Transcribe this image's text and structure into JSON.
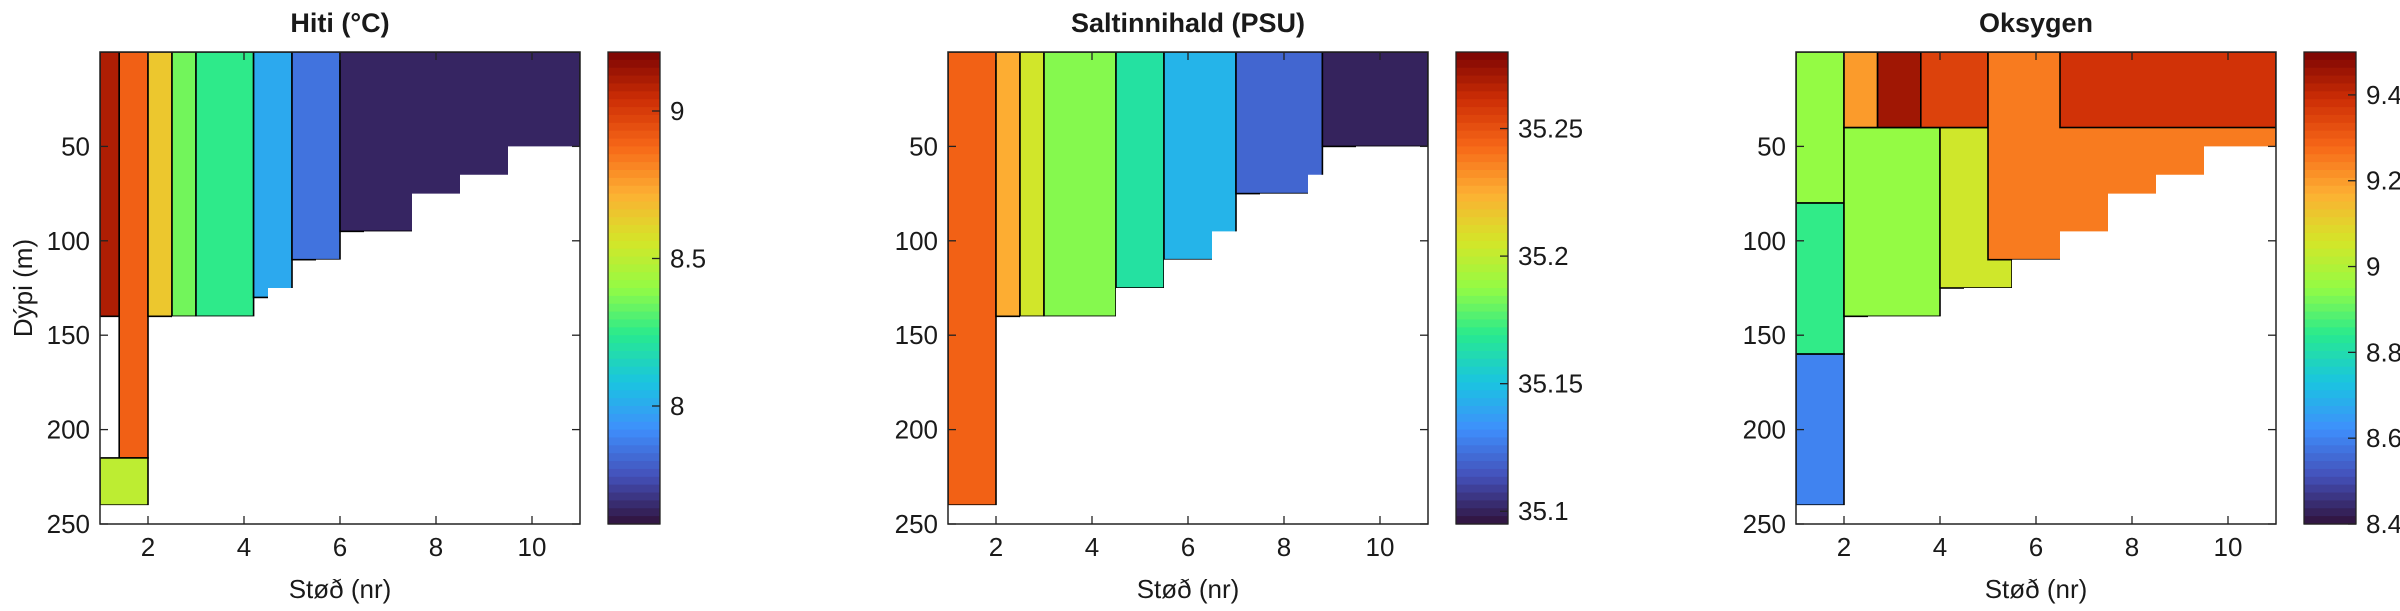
{
  "chart_data": [
    {
      "type": "heatmap",
      "title": "Hiti (°C)",
      "xlabel": "Støð (nr)",
      "ylabel": "Dýpi (m)",
      "xlim": [
        1,
        11
      ],
      "ylim": [
        250,
        0
      ],
      "y_reversed": true,
      "xticks": [
        2,
        4,
        6,
        8,
        10
      ],
      "yticks": [
        50,
        100,
        150,
        200,
        250
      ],
      "colorbar": {
        "range": [
          7.6,
          9.2
        ],
        "ticks": [
          "8",
          "8.5",
          "9"
        ]
      },
      "colormap": "turbo",
      "stations": [
        1,
        2,
        3,
        4,
        5,
        6,
        7,
        8,
        9,
        10,
        11
      ],
      "max_depth": [
        240,
        240,
        140,
        140,
        125,
        110,
        95,
        75,
        65,
        50,
        50
      ],
      "zones": [
        {
          "x": [
            1,
            1.4
          ],
          "depth": [
            0,
            140
          ],
          "value": 9.1
        },
        {
          "x": [
            1.4,
            2
          ],
          "depth": [
            0,
            215
          ],
          "value": 8.9
        },
        {
          "x": [
            1,
            2
          ],
          "depth": [
            215,
            240
          ],
          "value": 8.5
        },
        {
          "x": [
            2,
            2.5
          ],
          "depth": [
            0,
            140
          ],
          "value": 8.65
        },
        {
          "x": [
            2.5,
            3
          ],
          "depth": [
            0,
            140
          ],
          "value": 8.35
        },
        {
          "x": [
            3,
            4.2
          ],
          "depth": [
            0,
            140
          ],
          "value": 8.25
        },
        {
          "x": [
            4.2,
            5
          ],
          "depth": [
            0,
            130
          ],
          "value": 8.0
        },
        {
          "x": [
            5,
            6
          ],
          "depth": [
            0,
            110
          ],
          "value": 7.85
        },
        {
          "x": [
            6,
            11
          ],
          "depth": [
            0,
            95
          ],
          "value": 7.65
        }
      ]
    },
    {
      "type": "heatmap",
      "title": "Saltinnihald (PSU)",
      "xlabel": "Støð (nr)",
      "ylabel": "",
      "xlim": [
        1,
        11
      ],
      "ylim": [
        250,
        0
      ],
      "y_reversed": true,
      "xticks": [
        2,
        4,
        6,
        8,
        10
      ],
      "yticks": [
        50,
        100,
        150,
        200,
        250
      ],
      "colorbar": {
        "range": [
          35.095,
          35.28
        ],
        "ticks": [
          "35.1",
          "35.15",
          "35.2",
          "35.25"
        ]
      },
      "colormap": "turbo",
      "stations": [
        1,
        2,
        3,
        4,
        5,
        6,
        7,
        8,
        9,
        10,
        11
      ],
      "max_depth": [
        240,
        240,
        140,
        140,
        125,
        110,
        95,
        75,
        65,
        50,
        50
      ],
      "zones": [
        {
          "x": [
            1,
            2
          ],
          "depth": [
            0,
            240
          ],
          "value": 35.245
        },
        {
          "x": [
            2,
            2.5
          ],
          "depth": [
            0,
            140
          ],
          "value": 35.225
        },
        {
          "x": [
            2.5,
            3
          ],
          "depth": [
            0,
            140
          ],
          "value": 35.205
        },
        {
          "x": [
            3,
            4.5
          ],
          "depth": [
            0,
            140
          ],
          "value": 35.185
        },
        {
          "x": [
            4.5,
            5.5
          ],
          "depth": [
            0,
            125
          ],
          "value": 35.165
        },
        {
          "x": [
            5.5,
            7
          ],
          "depth": [
            0,
            110
          ],
          "value": 35.145
        },
        {
          "x": [
            7,
            8.8
          ],
          "depth": [
            0,
            75
          ],
          "value": 35.12
        },
        {
          "x": [
            8.8,
            11
          ],
          "depth": [
            0,
            50
          ],
          "value": 35.1
        }
      ]
    },
    {
      "type": "heatmap",
      "title": "Oksygen",
      "xlabel": "Støð (nr)",
      "ylabel": "",
      "xlim": [
        1,
        11
      ],
      "ylim": [
        250,
        0
      ],
      "y_reversed": true,
      "xticks": [
        2,
        4,
        6,
        8,
        10
      ],
      "yticks": [
        50,
        100,
        150,
        200,
        250
      ],
      "colorbar": {
        "range": [
          8.4,
          9.5
        ],
        "ticks": [
          "8.4",
          "8.6",
          "8.8",
          "9",
          "9.2",
          "9.4"
        ]
      },
      "colormap": "turbo",
      "stations": [
        1,
        2,
        3,
        4,
        5,
        6,
        7,
        8,
        9,
        10,
        11
      ],
      "max_depth": [
        240,
        240,
        140,
        140,
        125,
        110,
        95,
        75,
        65,
        50,
        50
      ],
      "zones": [
        {
          "x": [
            1,
            2
          ],
          "depth": [
            0,
            80
          ],
          "value": 8.95
        },
        {
          "x": [
            1,
            2
          ],
          "depth": [
            80,
            160
          ],
          "value": 8.85
        },
        {
          "x": [
            1,
            2
          ],
          "depth": [
            160,
            240
          ],
          "value": 8.6
        },
        {
          "x": [
            2,
            4
          ],
          "depth": [
            40,
            140
          ],
          "value": 8.95
        },
        {
          "x": [
            4,
            5.5
          ],
          "depth": [
            40,
            125
          ],
          "value": 9.05
        },
        {
          "x": [
            2,
            2.7
          ],
          "depth": [
            0,
            40
          ],
          "value": 9.2
        },
        {
          "x": [
            2.7,
            3.6
          ],
          "depth": [
            0,
            40
          ],
          "value": 9.45
        },
        {
          "x": [
            3.6,
            5
          ],
          "depth": [
            0,
            40
          ],
          "value": 9.35
        },
        {
          "x": [
            5,
            11
          ],
          "depth": [
            0,
            110
          ],
          "value": 9.25
        },
        {
          "x": [
            6.5,
            11
          ],
          "depth": [
            0,
            40
          ],
          "value": 9.38
        }
      ]
    }
  ]
}
